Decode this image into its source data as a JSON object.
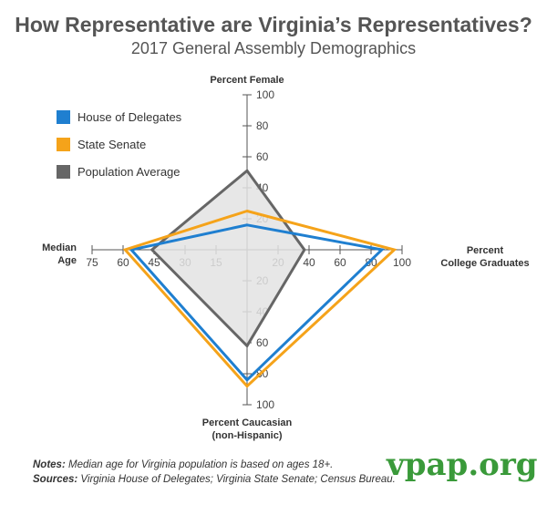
{
  "title": "How Representative are Virginia’s Representatives?",
  "subtitle": "2017 General Assembly Demographics",
  "legend": [
    {
      "label": "House of Delegates",
      "color": "#1f7fd0"
    },
    {
      "label": "State Senate",
      "color": "#f5a31a"
    },
    {
      "label": "Population Average",
      "color": "#666666"
    }
  ],
  "notes": {
    "notes_label": "Notes:",
    "notes_text": "Median age for Virginia population is based on ages 18+.",
    "sources_label": "Sources:",
    "sources_text": "Virginia House of Delegates; Virginia State Senate; Census Bureau."
  },
  "brand": "vpap.org",
  "chart_data": {
    "type": "radar",
    "axes": [
      {
        "key": "female",
        "label": "Percent Female",
        "direction": "up",
        "max": 100,
        "ticks": [
          "20",
          "40",
          "60",
          "80",
          "100"
        ]
      },
      {
        "key": "college",
        "label_lines": [
          "Percent",
          "College Graduates"
        ],
        "direction": "right",
        "max": 100,
        "ticks": [
          "20",
          "40",
          "60",
          "80",
          "100"
        ]
      },
      {
        "key": "caucasian",
        "label_lines": [
          "Percent Caucasian",
          "(non-Hispanic)"
        ],
        "direction": "down",
        "max": 100,
        "ticks": [
          "20",
          "40",
          "60",
          "80",
          "100"
        ]
      },
      {
        "key": "age",
        "label_lines": [
          "Median",
          "Age"
        ],
        "direction": "left",
        "max": 75,
        "ticks": [
          "15",
          "30",
          "45",
          "60",
          "75"
        ]
      }
    ],
    "series": [
      {
        "name": "Population Average",
        "color": "#666666",
        "fill": "#e3e3e3",
        "values": {
          "female": 51,
          "college": 37,
          "caucasian": 62,
          "age": 46
        }
      },
      {
        "name": "House of Delegates",
        "color": "#1f7fd0",
        "values": {
          "female": 16,
          "college": 87,
          "caucasian": 84,
          "age": 56
        }
      },
      {
        "name": "State Senate",
        "color": "#f5a31a",
        "values": {
          "female": 25,
          "college": 95,
          "caucasian": 88,
          "age": 59
        }
      }
    ]
  }
}
